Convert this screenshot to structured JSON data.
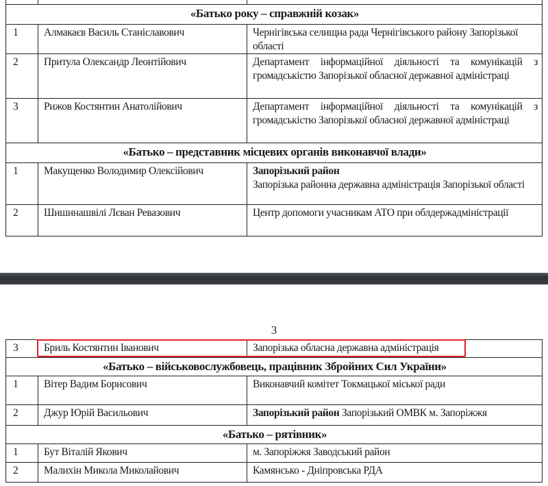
{
  "page1": {
    "rows": [
      {
        "type": "row",
        "num": "",
        "name": "",
        "org": ""
      },
      {
        "type": "section",
        "title": "«Батько року – справжній козак»"
      },
      {
        "type": "row",
        "num": "1",
        "name": "Алмакаєв Василь Станіславович",
        "org": "Чернігівська селищна рада Чернігівського району Запорізької області"
      },
      {
        "type": "row",
        "num": "2",
        "name": "Притула Олександр Леонтійович",
        "org": "Департамент інформаційної діяльності та комунікацій з громадськістю Запорізької обласної державної адміністраці",
        "justify": true
      },
      {
        "type": "row",
        "num": "3",
        "name": "Рижов Костянтин Анатолійович",
        "org": "Департамент інформаційної діяльності та комунікацій з громадськістю Запорізької обласної державної адміністраці",
        "justify": true
      },
      {
        "type": "section",
        "title": "«Батько – представник місцевих органів виконавчої влади»"
      },
      {
        "type": "row",
        "num": "1",
        "name": "Макущенко Володимир Олексійович",
        "org_bold": "Запорізький район",
        "bold_block": true,
        "org": "Запорізька районна державна адміністрація Запорізької області",
        "justify": true
      },
      {
        "type": "row",
        "num": "2",
        "name": "Шишинашвілі Лєван Ревазович",
        "org": "Центр допомоги учасникам АТО при облдержадміністрації"
      }
    ]
  },
  "page2": {
    "page_number": "3",
    "rows": [
      {
        "type": "row",
        "num": "3",
        "name": "Бриль Костянтин Іванович",
        "org": "Запорізька обласна державна адміністрація",
        "highlighted": true
      },
      {
        "type": "section",
        "title": "«Батько – військовослужбовець, працівник Збройних Сил України»"
      },
      {
        "type": "row",
        "num": "1",
        "name": "Вітер Вадим Борисович",
        "org": "Виконавчий комітет Токмацької міської ради"
      },
      {
        "type": "row",
        "num": "2",
        "name": "Джур Юрій Васильович",
        "org_bold": "Запорізький район",
        "org": "Запорізький ОМВК м. Запоріжжя"
      },
      {
        "type": "section",
        "title": "«Батько – рятівник»"
      },
      {
        "type": "row",
        "num": "1",
        "name": "Бут Віталій Якович",
        "org": "м. Запоріжжя Заводський район"
      },
      {
        "type": "row",
        "num": "2",
        "name": "Малихін Микола Миколайович",
        "org": "Камянсько - Дніпровська РДА"
      }
    ]
  },
  "colors": {
    "highlight": "#e0202a",
    "separator": "#3b3f43"
  }
}
